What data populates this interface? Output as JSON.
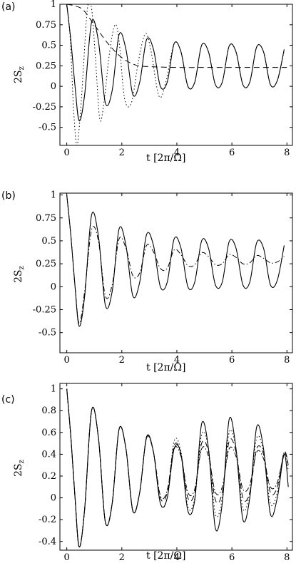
{
  "panels": [
    {
      "label": "(a)",
      "xlabel": "t [2π/Ω]",
      "ylabel": "2S",
      "ylabel_sub": "z",
      "xlim": [
        -0.25,
        8.2
      ],
      "ylim": [
        -0.72,
        1.0
      ],
      "xticks": [
        0,
        2,
        4,
        6,
        8
      ],
      "xtick_labels": [
        "0",
        "2",
        "4",
        "6",
        "8"
      ],
      "yticks": [
        1,
        0.75,
        0.5,
        0.25,
        0,
        -0.25,
        -0.5
      ],
      "ytick_labels": [
        "1",
        "0.75",
        "0.5",
        "0.25",
        "0",
        "-0.25",
        "-0.5"
      ]
    },
    {
      "label": "(b)",
      "xlabel": "t [2π/Ω]",
      "ylabel": "2S",
      "ylabel_sub": "z",
      "xlim": [
        -0.25,
        8.2
      ],
      "ylim": [
        -0.72,
        1.02
      ],
      "xticks": [
        0,
        2,
        4,
        6,
        8
      ],
      "xtick_labels": [
        "0",
        "2",
        "4",
        "6",
        "8"
      ],
      "yticks": [
        1,
        0.75,
        0.5,
        0.25,
        0,
        -0.25,
        -0.5
      ],
      "ytick_labels": [
        "1",
        "0.75",
        "0.5",
        "0.25",
        "0",
        "-0.25",
        "-0.5"
      ]
    },
    {
      "label": "(c)",
      "xlabel": "t [2π/Ω]",
      "ylabel": "2S",
      "ylabel_sub": "z",
      "xlim": [
        -0.25,
        8.2
      ],
      "ylim": [
        -0.48,
        1.05
      ],
      "xticks": [
        0,
        2,
        4,
        6,
        8
      ],
      "xtick_labels": [
        "0",
        "2",
        "4",
        "6",
        "8"
      ],
      "yticks": [
        1,
        0.8,
        0.6,
        0.4,
        0.2,
        0,
        -0.2,
        -0.4
      ],
      "ytick_labels": [
        "1",
        "0.8",
        "0.6",
        "0.4",
        "0.2",
        "0",
        "-0.2",
        "-0.4"
      ]
    }
  ],
  "chart_data": [
    {
      "type": "line",
      "title": "",
      "xlabel": "t [2π/Ω]",
      "ylabel": "2S_z",
      "xlim": [
        -0.25,
        8.2
      ],
      "ylim": [
        -0.72,
        1.0
      ],
      "grid": false,
      "series": [
        {
          "style": "solid",
          "x": [
            0,
            0.15,
            0.3,
            0.45,
            0.65,
            0.9,
            1.15,
            1.4,
            1.65,
            1.9,
            2.15,
            2.4,
            2.65,
            2.9,
            3.15,
            3.4,
            3.65,
            3.9,
            4.15,
            4.4,
            4.65,
            4.9,
            5.15,
            5.4,
            5.65,
            5.9,
            6.15,
            6.4,
            6.65,
            6.9,
            7.15,
            7.4,
            7.65,
            7.9
          ],
          "y": [
            1.0,
            0.55,
            0.0,
            -0.42,
            -0.1,
            0.78,
            0.55,
            -0.2,
            -0.05,
            0.63,
            0.45,
            -0.1,
            0.05,
            0.57,
            0.45,
            0.0,
            0.05,
            0.52,
            0.42,
            0.0,
            0.05,
            0.5,
            0.42,
            0.02,
            0.05,
            0.49,
            0.42,
            0.02,
            0.05,
            0.48,
            0.42,
            0.02,
            0.07,
            0.45
          ]
        },
        {
          "style": "dotted",
          "x": [
            0,
            0.12,
            0.25,
            0.37,
            0.5,
            0.6,
            0.75,
            0.9,
            1.05,
            1.2,
            1.35,
            1.55,
            1.75,
            1.9,
            2.1,
            2.35,
            2.6,
            2.85,
            3.05,
            3.35,
            3.6,
            3.9,
            4.15,
            4.4,
            4.65,
            4.9,
            5.15,
            5.4,
            5.65,
            5.9,
            6.15,
            6.4,
            6.65,
            6.9,
            7.15,
            7.4,
            7.65,
            7.9
          ],
          "y": [
            1.0,
            0.6,
            -0.3,
            -0.72,
            -0.3,
            0.2,
            0.95,
            0.95,
            0.3,
            -0.4,
            -0.2,
            0.4,
            0.75,
            0.55,
            -0.15,
            -0.2,
            0.3,
            0.64,
            0.45,
            -0.12,
            0.05,
            0.52,
            0.42,
            0.0,
            0.05,
            0.5,
            0.42,
            0.02,
            0.05,
            0.49,
            0.42,
            0.02,
            0.05,
            0.48,
            0.42,
            0.02,
            0.07,
            0.44
          ]
        },
        {
          "style": "dashed",
          "x": [
            0,
            0.3,
            0.6,
            1.0,
            1.5,
            2.0,
            2.5,
            3.0,
            4.0,
            5.0,
            6.0,
            7.0,
            8.0
          ],
          "y": [
            1.0,
            0.98,
            0.93,
            0.75,
            0.52,
            0.35,
            0.26,
            0.24,
            0.23,
            0.23,
            0.23,
            0.23,
            0.23
          ]
        }
      ]
    },
    {
      "type": "line",
      "title": "",
      "xlabel": "t [2π/Ω]",
      "ylabel": "2S_z",
      "xlim": [
        -0.25,
        8.2
      ],
      "ylim": [
        -0.72,
        1.02
      ],
      "grid": false,
      "series": [
        {
          "style": "solid",
          "x": [
            0,
            0.15,
            0.3,
            0.45,
            0.65,
            0.9,
            1.15,
            1.4,
            1.65,
            1.9,
            2.15,
            2.4,
            2.65,
            2.9,
            3.15,
            3.4,
            3.65,
            3.9,
            4.15,
            4.4,
            4.65,
            4.9,
            5.15,
            5.4,
            5.65,
            5.9,
            6.15,
            6.4,
            6.65,
            6.9,
            7.15,
            7.4,
            7.65,
            7.9
          ],
          "y": [
            1.0,
            0.55,
            0.0,
            -0.43,
            -0.1,
            0.78,
            0.55,
            -0.2,
            -0.05,
            0.63,
            0.45,
            -0.1,
            0.05,
            0.57,
            0.45,
            0.0,
            0.05,
            0.52,
            0.42,
            0.0,
            0.05,
            0.5,
            0.42,
            0.02,
            0.05,
            0.49,
            0.42,
            0.02,
            0.05,
            0.48,
            0.42,
            0.02,
            0.07,
            0.45
          ]
        },
        {
          "style": "dash-dot",
          "x": [
            0,
            0.15,
            0.3,
            0.45,
            0.65,
            0.9,
            1.15,
            1.4,
            1.65,
            1.9,
            2.15,
            2.4,
            2.65,
            2.9,
            3.15,
            3.4,
            3.65,
            3.9,
            4.15,
            4.4,
            4.65,
            4.9,
            5.15,
            5.4,
            5.65,
            5.9,
            6.15,
            6.4,
            6.65,
            6.9,
            7.15,
            7.4,
            7.65,
            7.9
          ],
          "y": [
            1.0,
            0.55,
            0.0,
            -0.4,
            -0.05,
            0.62,
            0.5,
            -0.1,
            0.02,
            0.52,
            0.42,
            0.12,
            0.15,
            0.45,
            0.38,
            0.2,
            0.2,
            0.4,
            0.35,
            0.23,
            0.24,
            0.37,
            0.33,
            0.24,
            0.25,
            0.35,
            0.32,
            0.25,
            0.26,
            0.34,
            0.31,
            0.26,
            0.27,
            0.33
          ]
        }
      ]
    },
    {
      "type": "line",
      "title": "",
      "xlabel": "t [2π/Ω]",
      "ylabel": "2S_z",
      "xlim": [
        -0.25,
        8.2
      ],
      "ylim": [
        -0.48,
        1.05
      ],
      "grid": false,
      "series": [
        {
          "style": "solid",
          "x": [
            0,
            0.15,
            0.3,
            0.45,
            0.65,
            0.9,
            1.15,
            1.4,
            1.65,
            1.9,
            2.15,
            2.4,
            2.65,
            2.9,
            3.15,
            3.4,
            3.65,
            3.9,
            4.15,
            4.4,
            4.65,
            4.9,
            5.15,
            5.4,
            5.65,
            5.9,
            6.15,
            6.4,
            6.65,
            6.9,
            7.15,
            7.4,
            7.65,
            7.9,
            8.05
          ],
          "y": [
            1.0,
            0.55,
            0.0,
            -0.45,
            -0.1,
            0.8,
            0.55,
            -0.22,
            -0.05,
            0.63,
            0.45,
            -0.12,
            0.05,
            0.56,
            0.42,
            -0.05,
            0.0,
            0.45,
            0.4,
            -0.12,
            -0.02,
            0.68,
            0.45,
            -0.28,
            -0.05,
            0.72,
            0.45,
            -0.2,
            0.0,
            0.65,
            0.45,
            -0.15,
            0.0,
            0.4,
            0.1
          ]
        },
        {
          "style": "dashed",
          "x": [
            0,
            0.15,
            0.3,
            0.45,
            0.65,
            0.9,
            1.15,
            1.4,
            1.65,
            1.9,
            2.15,
            2.4,
            2.65,
            2.9,
            3.15,
            3.4,
            3.65,
            3.9,
            4.15,
            4.4,
            4.65,
            4.9,
            5.15,
            5.4,
            5.65,
            5.9,
            6.15,
            6.4,
            6.65,
            6.9,
            7.15,
            7.4,
            7.65,
            7.9,
            8.05
          ],
          "y": [
            1.0,
            0.55,
            0.0,
            -0.45,
            -0.1,
            0.8,
            0.55,
            -0.22,
            -0.05,
            0.63,
            0.45,
            -0.12,
            0.05,
            0.55,
            0.42,
            0.0,
            0.05,
            0.48,
            0.4,
            0.0,
            0.05,
            0.5,
            0.42,
            -0.02,
            0.05,
            0.52,
            0.42,
            0.0,
            0.05,
            0.45,
            0.4,
            0.05,
            0.1,
            0.42,
            0.3
          ]
        },
        {
          "style": "dotted",
          "x": [
            0,
            0.15,
            0.3,
            0.45,
            0.65,
            0.9,
            1.15,
            1.4,
            1.65,
            1.9,
            2.15,
            2.4,
            2.65,
            2.9,
            3.15,
            3.4,
            3.65,
            3.9,
            4.15,
            4.4,
            4.65,
            4.9,
            5.15,
            5.4,
            5.65,
            5.9,
            6.15,
            6.4,
            6.65,
            6.9,
            7.15,
            7.4,
            7.65,
            7.9,
            8.05
          ],
          "y": [
            1.0,
            0.55,
            0.0,
            -0.45,
            -0.1,
            0.8,
            0.55,
            -0.22,
            -0.05,
            0.63,
            0.45,
            -0.12,
            0.05,
            0.56,
            0.42,
            -0.05,
            0.0,
            0.52,
            0.42,
            -0.08,
            0.0,
            0.58,
            0.45,
            -0.15,
            0.0,
            0.6,
            0.45,
            -0.1,
            0.05,
            0.55,
            0.42,
            -0.05,
            0.05,
            0.42,
            0.25
          ]
        },
        {
          "style": "dash-dot",
          "x": [
            0,
            0.15,
            0.3,
            0.45,
            0.65,
            0.9,
            1.15,
            1.4,
            1.65,
            1.9,
            2.15,
            2.4,
            2.65,
            2.9,
            3.15,
            3.4,
            3.65,
            3.9,
            4.15,
            4.4,
            4.65,
            4.9,
            5.15,
            5.4,
            5.65,
            5.9,
            6.15,
            6.4,
            6.65,
            6.9,
            7.15,
            7.4,
            7.65,
            7.9,
            8.05
          ],
          "y": [
            1.0,
            0.55,
            0.0,
            -0.45,
            -0.1,
            0.8,
            0.55,
            -0.22,
            -0.05,
            0.63,
            0.45,
            -0.12,
            0.05,
            0.55,
            0.42,
            0.02,
            0.07,
            0.45,
            0.38,
            0.05,
            0.08,
            0.45,
            0.38,
            0.05,
            0.1,
            0.45,
            0.38,
            0.08,
            0.12,
            0.42,
            0.36,
            0.1,
            0.14,
            0.4,
            0.32
          ]
        }
      ]
    }
  ]
}
